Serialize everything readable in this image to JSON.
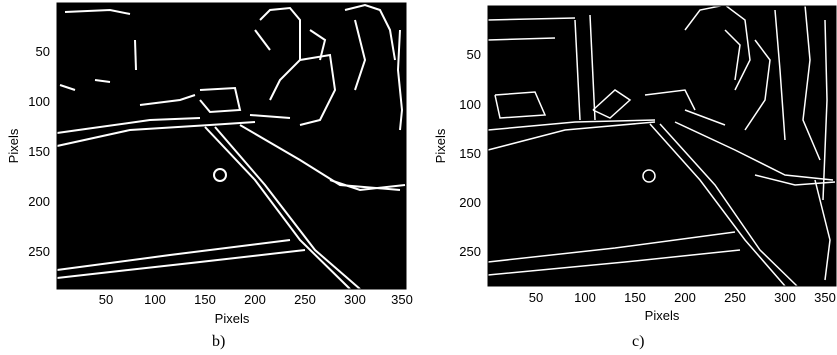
{
  "panels": [
    {
      "id": "b",
      "caption": "b)",
      "xlabel": "Pixels",
      "ylabel": "Pixels",
      "xticks": [
        "50",
        "100",
        "150",
        "200",
        "250",
        "300",
        "350"
      ],
      "yticks": [
        "50",
        "100",
        "150",
        "200",
        "250"
      ],
      "image_description_name": "edge-map-image"
    },
    {
      "id": "c",
      "caption": "c)",
      "xlabel": "Pixels",
      "ylabel": "Pixels",
      "xticks": [
        "50",
        "100",
        "150",
        "200",
        "250",
        "300",
        "350"
      ],
      "yticks": [
        "50",
        "100",
        "150",
        "200",
        "250"
      ],
      "image_description_name": "edge-map-image"
    }
  ],
  "colors": {
    "image_background": "#000000",
    "edge_color": "#ffffff",
    "page_background": "#ffffff"
  }
}
